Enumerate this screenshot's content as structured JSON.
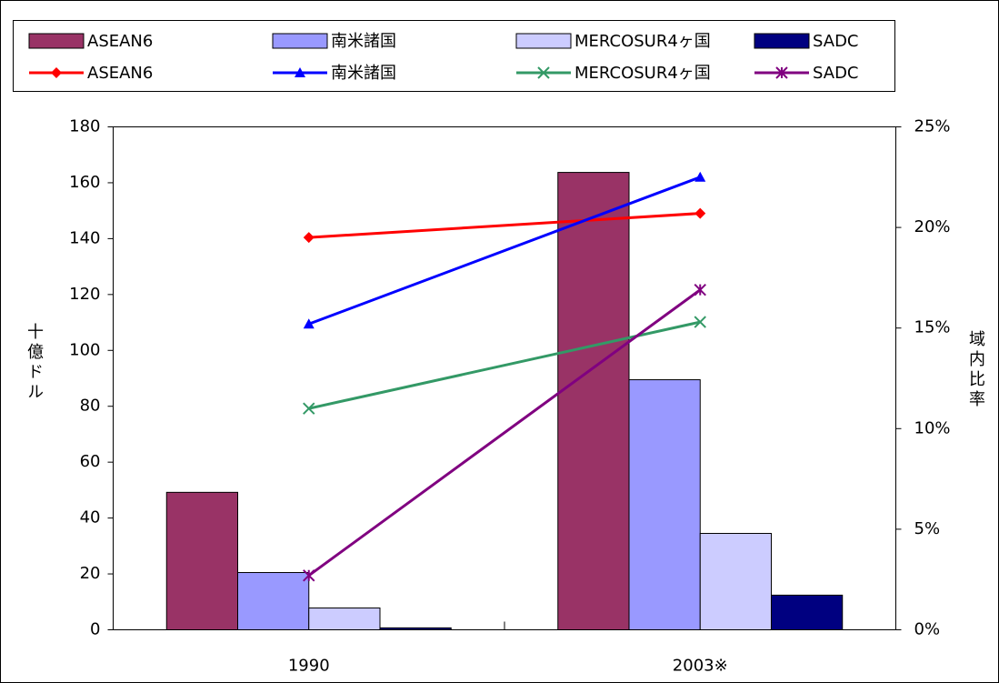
{
  "chart_data": {
    "type": "bar",
    "categories": [
      "1990",
      "2003※"
    ],
    "ylabel": "十億ドル",
    "y2label": "域内比率",
    "ylim": [
      0,
      180
    ],
    "yticks": [
      0,
      20,
      40,
      60,
      80,
      100,
      120,
      140,
      160,
      180
    ],
    "y2lim": [
      0,
      25
    ],
    "y2ticks": [
      {
        "value": 0,
        "label": "0%"
      },
      {
        "value": 5,
        "label": "5%"
      },
      {
        "value": 10,
        "label": "10%"
      },
      {
        "value": 15,
        "label": "15%"
      },
      {
        "value": 20,
        "label": "20%"
      },
      {
        "value": 25,
        "label": "25%"
      }
    ],
    "series": [
      {
        "name": "ASEAN6",
        "type": "bar",
        "color": "#993366",
        "values": [
          49.2,
          163.7
        ]
      },
      {
        "name": "南米諸国",
        "type": "bar",
        "color": "#9999ff",
        "values": [
          20.5,
          89.5
        ]
      },
      {
        "name": "MERCOSUR4ヶ国",
        "type": "bar",
        "color": "#ccccff",
        "values": [
          7.8,
          34.5
        ]
      },
      {
        "name": "SADC",
        "type": "bar",
        "color": "#000080",
        "values": [
          0.7,
          12.4
        ]
      },
      {
        "name": "ASEAN6",
        "type": "line",
        "axis": "y2",
        "marker": "diamond",
        "color": "#ff0000",
        "values": [
          19.5,
          20.7
        ]
      },
      {
        "name": "南米諸国",
        "type": "line",
        "axis": "y2",
        "marker": "triangle",
        "color": "#0000ff",
        "values": [
          15.2,
          22.5
        ]
      },
      {
        "name": "MERCOSUR4ヶ国",
        "type": "line",
        "axis": "y2",
        "marker": "x",
        "color": "#339966",
        "values": [
          11.0,
          15.3
        ]
      },
      {
        "name": "SADC",
        "type": "line",
        "axis": "y2",
        "marker": "asterisk",
        "color": "#800080",
        "values": [
          2.7,
          16.9
        ]
      }
    ]
  }
}
